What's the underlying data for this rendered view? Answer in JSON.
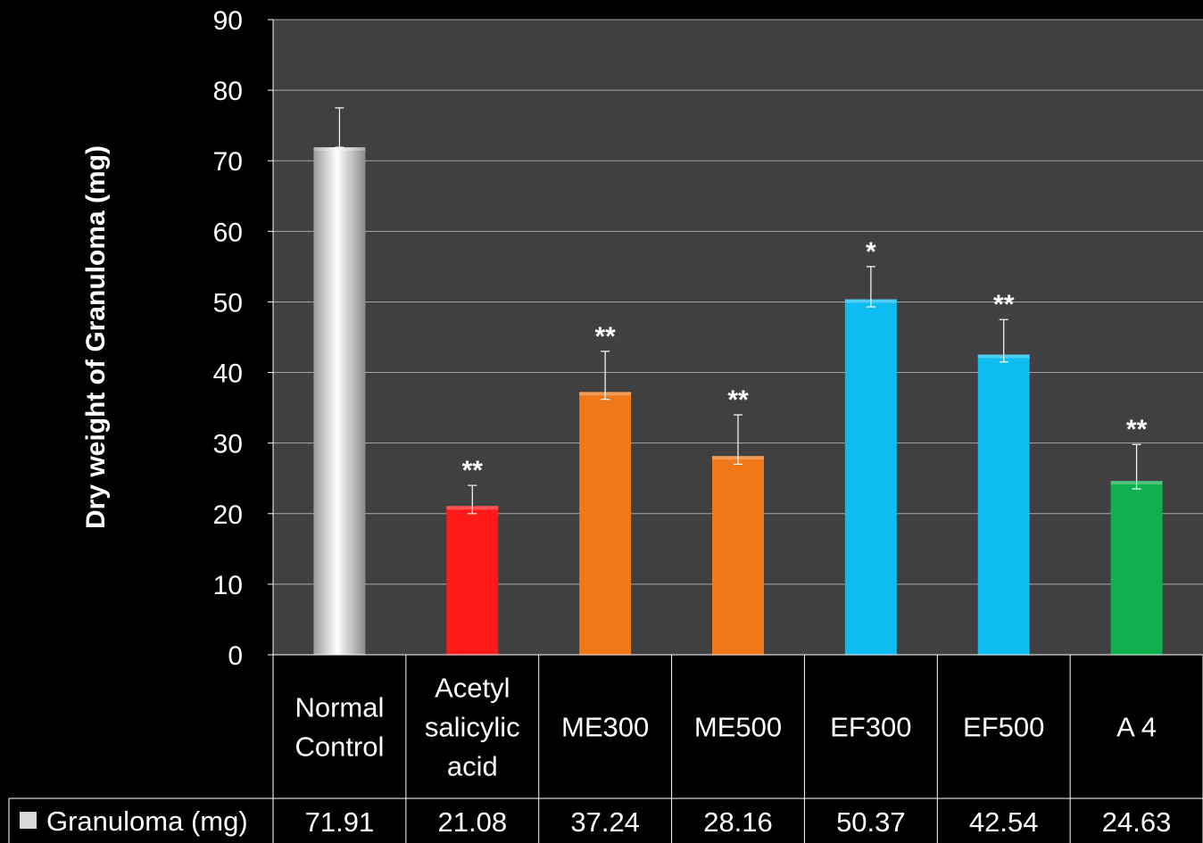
{
  "chart_data": {
    "type": "bar",
    "ylabel": "Dry weight of Granuloma (mg)",
    "ylim": [
      0,
      90
    ],
    "yticks": [
      0,
      10,
      20,
      30,
      40,
      50,
      60,
      70,
      80,
      90
    ],
    "grid": true,
    "categories": [
      [
        "Normal",
        "Control"
      ],
      [
        "Acetyl",
        "salicylic",
        "acid"
      ],
      [
        "ME300"
      ],
      [
        "ME500"
      ],
      [
        "EF300"
      ],
      [
        "EF500"
      ],
      [
        "A 4"
      ]
    ],
    "series": [
      {
        "name": "Granuloma (mg)",
        "values": [
          71.91,
          21.08,
          37.24,
          28.16,
          50.37,
          42.54,
          24.63
        ],
        "value_labels": [
          "71.91",
          "21.08",
          "37.24",
          "28.16",
          "50.37",
          "42.54",
          "24.63"
        ],
        "error_upper": [
          77.5,
          24.0,
          43.0,
          34.0,
          55.0,
          47.5,
          29.8
        ],
        "error_lower": [
          71.91,
          20.0,
          36.2,
          27.0,
          49.3,
          41.5,
          23.5
        ],
        "significance": [
          "",
          "**",
          "**",
          "**",
          "*",
          "**",
          "**"
        ],
        "colors": [
          "#f2f2f2",
          "#ff1a1a",
          "#f07818",
          "#f07818",
          "#0fbcf2",
          "#0fbcf2",
          "#10b050"
        ]
      }
    ],
    "legend_swatch_color": "#d9d9d9",
    "plot_background": "#404040",
    "background": "#000000"
  }
}
